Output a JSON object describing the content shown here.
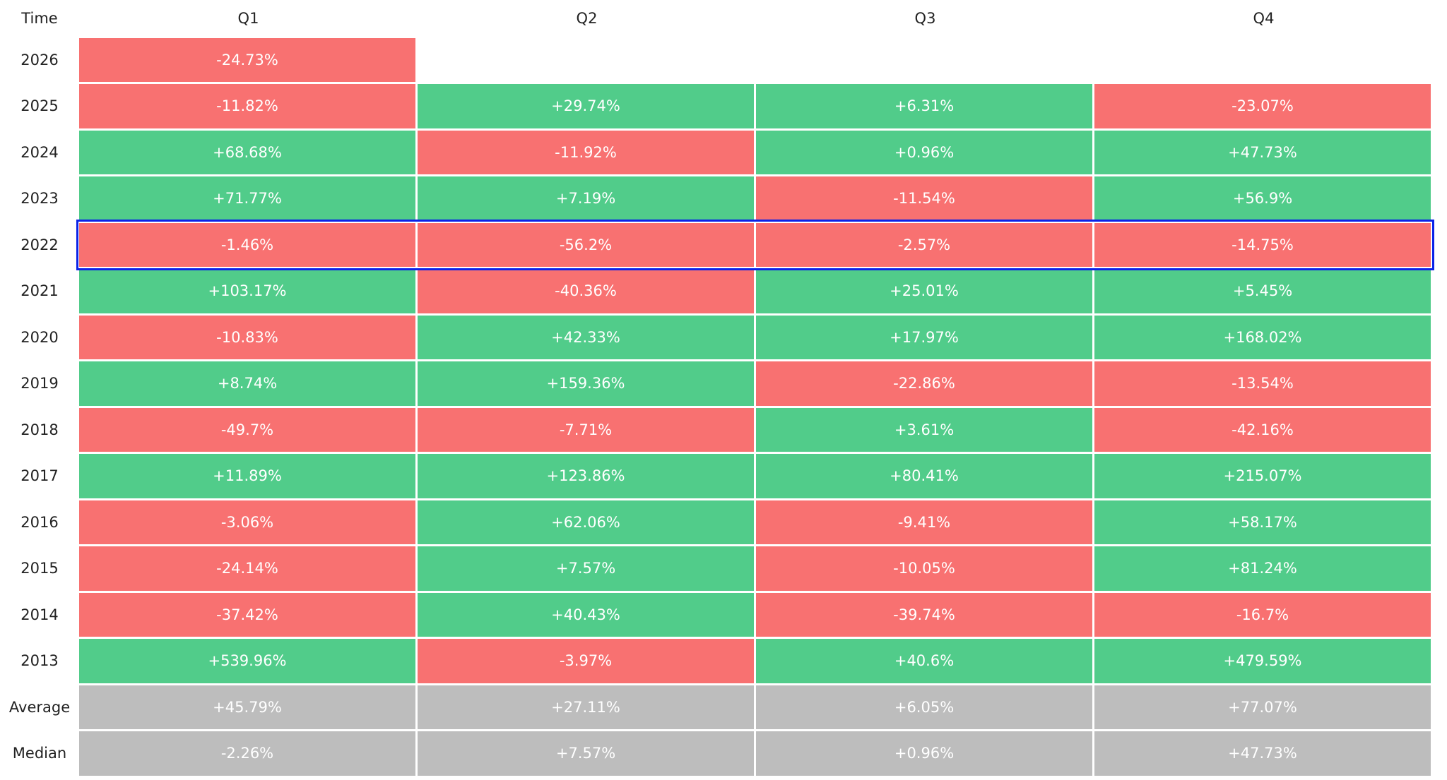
{
  "table": {
    "header": [
      "Time",
      "Q1",
      "Q2",
      "Q3",
      "Q4"
    ],
    "rows": [
      [
        "2026",
        "-24.73%",
        null,
        null,
        null
      ],
      [
        "2025",
        "-11.82%",
        "+29.74%",
        "+6.31%",
        "-23.07%"
      ],
      [
        "2024",
        "+68.68%",
        "-11.92%",
        "+0.96%",
        "+47.73%"
      ],
      [
        "2023",
        "+71.77%",
        "+7.19%",
        "-11.54%",
        "+56.9%"
      ],
      [
        "2022",
        "-1.46%",
        "-56.2%",
        "-2.57%",
        "-14.75%"
      ],
      [
        "2021",
        "+103.17%",
        "-40.36%",
        "+25.01%",
        "+5.45%"
      ],
      [
        "2020",
        "-10.83%",
        "+42.33%",
        "+17.97%",
        "+168.02%"
      ],
      [
        "2019",
        "+8.74%",
        "+159.36%",
        "-22.86%",
        "-13.54%"
      ],
      [
        "2018",
        "-49.7%",
        "-7.71%",
        "+3.61%",
        "-42.16%"
      ],
      [
        "2017",
        "+11.89%",
        "+123.86%",
        "+80.41%",
        "+215.07%"
      ],
      [
        "2016",
        "-3.06%",
        "+62.06%",
        "-9.41%",
        "+58.17%"
      ],
      [
        "2015",
        "-24.14%",
        "+7.57%",
        "-10.05%",
        "+81.24%"
      ],
      [
        "2014",
        "-37.42%",
        "+40.43%",
        "-39.74%",
        "-16.7%"
      ],
      [
        "2013",
        "+539.96%",
        "-3.97%",
        "+40.6%",
        "+479.59%"
      ]
    ],
    "summary_rows": [
      [
        "Average",
        "+45.79%",
        "+27.11%",
        "+6.05%",
        "+77.07%"
      ],
      [
        "Median",
        "-2.26%",
        "+7.57%",
        "+0.96%",
        "+47.73%"
      ]
    ]
  }
}
